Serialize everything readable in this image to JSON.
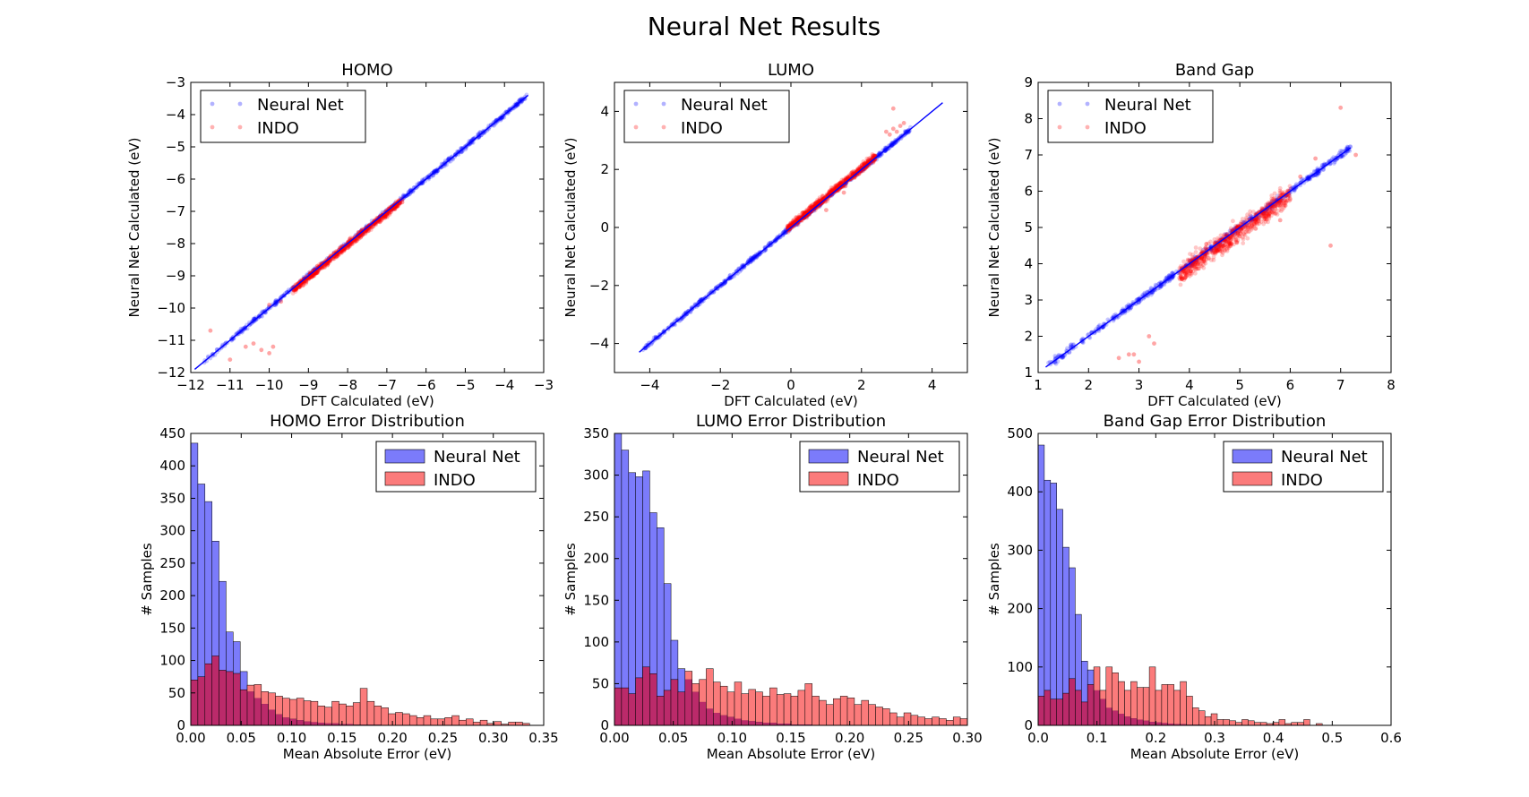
{
  "figure": {
    "title": "Neural Net Results"
  },
  "colors": {
    "neural_net": "#0000ff",
    "indo": "#ff0000",
    "nn_fill": "#7b7bfb",
    "indo_fill": "#fb7b7b",
    "overlap_fill": "#bb2a6a"
  },
  "chart_data": [
    {
      "type": "scatter",
      "title": "HOMO",
      "xlabel": "DFT Calculated (eV)",
      "ylabel": "Neural Net Calculated (eV)",
      "xlim": [
        -12,
        -3
      ],
      "ylim": [
        -12,
        -3
      ],
      "xticks": [
        -12,
        -11,
        -10,
        -9,
        -8,
        -7,
        -6,
        -5,
        -4,
        -3
      ],
      "yticks": [
        -12,
        -11,
        -10,
        -9,
        -8,
        -7,
        -6,
        -5,
        -4,
        -3
      ],
      "xtick_labels": [
        "−12",
        "−11",
        "−10",
        "−9",
        "−8",
        "−7",
        "−6",
        "−5",
        "−4",
        "−3"
      ],
      "ytick_labels": [
        "−12",
        "−11",
        "−10",
        "−9",
        "−8",
        "−7",
        "−6",
        "−5",
        "−4",
        "−3"
      ],
      "legend": {
        "position": "top-left",
        "entries": [
          "Neural Net",
          "INDO"
        ]
      },
      "fit_line": [
        [
          -11.9,
          -11.9
        ],
        [
          -3.4,
          -3.4
        ]
      ],
      "series": [
        {
          "name": "Neural Net",
          "x_range": [
            -11.7,
            -3.4
          ],
          "slope": 1.0,
          "offset": 0,
          "noise": 0.06
        },
        {
          "name": "INDO",
          "x_range": [
            -9.4,
            -6.6
          ],
          "slope": 1.0,
          "offset": -0.05,
          "noise": 0.1
        }
      ],
      "outliers": [
        [
          -11.5,
          -10.7
        ],
        [
          -10.6,
          -11.2
        ],
        [
          -10.2,
          -11.3
        ],
        [
          -10.0,
          -11.4
        ],
        [
          -10.4,
          -11.1
        ],
        [
          -9.9,
          -11.2
        ],
        [
          -11.0,
          -11.6
        ],
        [
          -10.0,
          -9.9
        ],
        [
          -9.7,
          -9.8
        ],
        [
          -9.2,
          -9.3
        ]
      ]
    },
    {
      "type": "scatter",
      "title": "LUMO",
      "xlabel": "DFT Calculated (eV)",
      "ylabel": "Neural Net Calculated (eV)",
      "xlim": [
        -5,
        5
      ],
      "ylim": [
        -5,
        5
      ],
      "xticks": [
        -4,
        -2,
        0,
        2,
        4
      ],
      "yticks": [
        -4,
        -2,
        0,
        2,
        4
      ],
      "xtick_labels": [
        "−4",
        "−2",
        "0",
        "2",
        "4"
      ],
      "ytick_labels": [
        "−4",
        "−2",
        "0",
        "2",
        "4"
      ],
      "legend": {
        "position": "top-left",
        "entries": [
          "Neural Net",
          "INDO"
        ]
      },
      "fit_line": [
        [
          -4.3,
          -4.3
        ],
        [
          4.3,
          4.3
        ]
      ],
      "series": [
        {
          "name": "Neural Net",
          "x_range": [
            -4.2,
            3.4
          ],
          "slope": 1.0,
          "offset": 0,
          "noise": 0.06
        },
        {
          "name": "INDO",
          "x_range": [
            -0.1,
            2.4
          ],
          "slope": 1.0,
          "offset": 0.05,
          "noise": 0.12
        }
      ],
      "outliers": [
        [
          2.7,
          3.3
        ],
        [
          2.9,
          3.4
        ],
        [
          3.1,
          3.5
        ],
        [
          3.2,
          3.6
        ],
        [
          2.8,
          3.2
        ],
        [
          3.0,
          3.3
        ],
        [
          2.9,
          4.1
        ],
        [
          1.5,
          1.2
        ],
        [
          1.0,
          0.6
        ]
      ]
    },
    {
      "type": "scatter",
      "title": "Band Gap",
      "xlabel": "DFT Calculated (eV)",
      "ylabel": "Neural Net Calculated (eV)",
      "xlim": [
        1,
        8
      ],
      "ylim": [
        1,
        9
      ],
      "xticks": [
        1,
        2,
        3,
        4,
        5,
        6,
        7,
        8
      ],
      "yticks": [
        1,
        2,
        3,
        4,
        5,
        6,
        7,
        8,
        9
      ],
      "xtick_labels": [
        "1",
        "2",
        "3",
        "4",
        "5",
        "6",
        "7",
        "8"
      ],
      "ytick_labels": [
        "1",
        "2",
        "3",
        "4",
        "5",
        "6",
        "7",
        "8",
        "9"
      ],
      "legend": {
        "position": "top-left",
        "entries": [
          "Neural Net",
          "INDO"
        ]
      },
      "fit_line": [
        [
          1.15,
          1.15
        ],
        [
          7.2,
          7.2
        ]
      ],
      "series": [
        {
          "name": "Neural Net",
          "x_range": [
            1.2,
            7.2
          ],
          "slope": 1.0,
          "offset": 0,
          "noise": 0.08
        },
        {
          "name": "INDO",
          "x_range": [
            3.8,
            6.0
          ],
          "slope": 1.0,
          "offset": -0.1,
          "noise": 0.25
        }
      ],
      "outliers": [
        [
          2.6,
          1.4
        ],
        [
          2.8,
          1.5
        ],
        [
          3.0,
          1.3
        ],
        [
          3.2,
          2.0
        ],
        [
          3.3,
          1.8
        ],
        [
          2.9,
          1.5
        ],
        [
          7.0,
          8.3
        ],
        [
          6.8,
          4.5
        ],
        [
          7.3,
          7.0
        ],
        [
          6.5,
          6.9
        ],
        [
          6.2,
          6.4
        ],
        [
          5.8,
          5.2
        ]
      ]
    },
    {
      "type": "bar",
      "subtype": "histogram",
      "title": "HOMO Error Distribution",
      "xlabel": "Mean Absolute Error (eV)",
      "ylabel": "# Samples",
      "xlim": [
        0,
        0.35
      ],
      "ylim": [
        0,
        450
      ],
      "xticks": [
        0.0,
        0.05,
        0.1,
        0.15,
        0.2,
        0.25,
        0.3,
        0.35
      ],
      "yticks": [
        0,
        50,
        100,
        150,
        200,
        250,
        300,
        350,
        400,
        450
      ],
      "xtick_labels": [
        "0.00",
        "0.05",
        "0.10",
        "0.15",
        "0.20",
        "0.25",
        "0.30",
        "0.35"
      ],
      "ytick_labels": [
        "0",
        "50",
        "100",
        "150",
        "200",
        "250",
        "300",
        "350",
        "400",
        "450"
      ],
      "bin_start": 0.0,
      "bin_width": 0.007,
      "legend": {
        "position": "top-right",
        "entries": [
          "Neural Net",
          "INDO"
        ]
      },
      "series": [
        {
          "name": "Neural Net",
          "values": [
            435,
            372,
            345,
            284,
            222,
            144,
            129,
            83,
            52,
            42,
            33,
            24,
            17,
            12,
            10,
            8,
            6,
            5,
            4,
            3,
            3,
            2,
            2,
            1,
            1,
            1,
            1,
            0,
            0,
            0,
            0,
            0,
            0,
            0,
            0,
            0,
            0,
            0,
            0,
            0,
            0,
            0,
            0,
            0,
            0,
            0,
            0,
            0
          ]
        },
        {
          "name": "INDO",
          "values": [
            70,
            75,
            95,
            107,
            85,
            83,
            80,
            55,
            62,
            63,
            52,
            50,
            45,
            42,
            40,
            42,
            38,
            37,
            30,
            28,
            37,
            33,
            30,
            35,
            57,
            37,
            30,
            27,
            18,
            20,
            18,
            15,
            12,
            15,
            10,
            10,
            12,
            15,
            8,
            10,
            5,
            8,
            3,
            6,
            2,
            5,
            5,
            3
          ]
        }
      ]
    },
    {
      "type": "bar",
      "subtype": "histogram",
      "title": "LUMO Error Distribution",
      "xlabel": "Mean Absolute Error (eV)",
      "ylabel": "# Samples",
      "xlim": [
        0,
        0.3
      ],
      "ylim": [
        0,
        350
      ],
      "xticks": [
        0.0,
        0.05,
        0.1,
        0.15,
        0.2,
        0.25,
        0.3
      ],
      "yticks": [
        0,
        50,
        100,
        150,
        200,
        250,
        300,
        350
      ],
      "xtick_labels": [
        "0.00",
        "0.05",
        "0.10",
        "0.15",
        "0.20",
        "0.25",
        "0.30"
      ],
      "ytick_labels": [
        "0",
        "50",
        "100",
        "150",
        "200",
        "250",
        "300",
        "350"
      ],
      "bin_start": 0.0,
      "bin_width": 0.006,
      "legend": {
        "position": "top-right",
        "entries": [
          "Neural Net",
          "INDO"
        ]
      },
      "series": [
        {
          "name": "Neural Net",
          "values": [
            350,
            330,
            303,
            298,
            305,
            255,
            237,
            170,
            102,
            68,
            55,
            40,
            28,
            20,
            15,
            12,
            10,
            8,
            6,
            5,
            4,
            3,
            3,
            2,
            2,
            1,
            1,
            1,
            0,
            0,
            0,
            0,
            0,
            0,
            0,
            0,
            0,
            0,
            0,
            0,
            0,
            0,
            0,
            0,
            0,
            0,
            0,
            0,
            0,
            0
          ]
        },
        {
          "name": "INDO",
          "values": [
            45,
            45,
            38,
            57,
            70,
            62,
            35,
            42,
            55,
            40,
            65,
            50,
            55,
            68,
            52,
            47,
            40,
            52,
            38,
            43,
            40,
            35,
            45,
            37,
            38,
            35,
            42,
            50,
            35,
            30,
            25,
            32,
            35,
            33,
            25,
            30,
            25,
            22,
            20,
            15,
            10,
            15,
            12,
            10,
            8,
            10,
            8,
            6,
            10,
            8
          ]
        }
      ]
    },
    {
      "type": "bar",
      "subtype": "histogram",
      "title": "Band Gap Error Distribution",
      "xlabel": "Mean Absolute Error (eV)",
      "ylabel": "# Samples",
      "xlim": [
        0,
        0.6
      ],
      "ylim": [
        0,
        500
      ],
      "xticks": [
        0.0,
        0.1,
        0.2,
        0.3,
        0.4,
        0.5,
        0.6
      ],
      "yticks": [
        0,
        100,
        200,
        300,
        400,
        500
      ],
      "xtick_labels": [
        "0.0",
        "0.1",
        "0.2",
        "0.3",
        "0.4",
        "0.5",
        "0.6"
      ],
      "ytick_labels": [
        "0",
        "100",
        "200",
        "300",
        "400",
        "500"
      ],
      "bin_start": 0.0,
      "bin_width": 0.0105,
      "legend": {
        "position": "top-right",
        "entries": [
          "Neural Net",
          "INDO"
        ]
      },
      "series": [
        {
          "name": "Neural Net",
          "values": [
            480,
            420,
            415,
            370,
            305,
            270,
            190,
            110,
            95,
            60,
            45,
            30,
            25,
            20,
            15,
            12,
            10,
            8,
            6,
            5,
            4,
            3,
            2,
            2,
            1,
            1,
            1,
            0,
            0,
            0,
            0,
            0,
            0,
            0,
            0,
            0,
            0,
            0,
            0,
            0,
            0,
            0,
            0,
            0,
            0,
            0,
            0,
            0
          ]
        },
        {
          "name": "INDO",
          "values": [
            50,
            60,
            45,
            45,
            55,
            80,
            60,
            40,
            70,
            100,
            60,
            100,
            90,
            75,
            60,
            75,
            65,
            65,
            100,
            60,
            70,
            70,
            60,
            75,
            50,
            30,
            25,
            15,
            20,
            10,
            10,
            8,
            5,
            10,
            8,
            5,
            5,
            3,
            5,
            10,
            3,
            5,
            5,
            10,
            0,
            3,
            0,
            0
          ]
        }
      ]
    }
  ]
}
